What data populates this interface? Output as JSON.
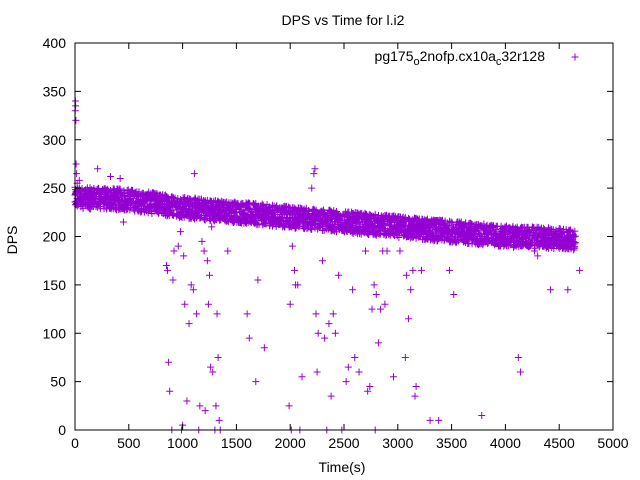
{
  "chart_data": {
    "type": "scatter",
    "title": "DPS vs Time for l.i2",
    "xlabel": "Time(s)",
    "ylabel": "DPS",
    "xlim": [
      0,
      5000
    ],
    "ylim": [
      0,
      400
    ],
    "x_ticks": [
      0,
      500,
      1000,
      1500,
      2000,
      2500,
      3000,
      3500,
      4000,
      4500,
      5000
    ],
    "y_ticks": [
      0,
      50,
      100,
      150,
      200,
      250,
      300,
      350,
      400
    ],
    "x_tick_labels": [
      "0",
      "500",
      "1000",
      "1500",
      "2000",
      "2500",
      "3000",
      "3500",
      "4000",
      "4500",
      "5000"
    ],
    "y_tick_labels": [
      "0",
      "50",
      "100",
      "150",
      "200",
      "250",
      "300",
      "350",
      "400"
    ],
    "grid": false,
    "legend_position": "top-right",
    "marker": "+",
    "color": "#9400d3",
    "series": [
      {
        "name": "pg175_o2nofp.cx10a_c32r128",
        "name_parts": [
          {
            "text": "pg175",
            "sub": false
          },
          {
            "text": "o",
            "sub": true
          },
          {
            "text": "2nofp.cx10a",
            "sub": false
          },
          {
            "text": "c",
            "sub": true
          },
          {
            "text": "32r128",
            "sub": false
          }
        ],
        "trend": [
          [
            0,
            240
          ],
          [
            500,
            238
          ],
          [
            1000,
            230
          ],
          [
            1500,
            225
          ],
          [
            2000,
            220
          ],
          [
            2500,
            215
          ],
          [
            3000,
            210
          ],
          [
            3500,
            205
          ],
          [
            4000,
            200
          ],
          [
            4650,
            197
          ]
        ],
        "points": [
          [
            2,
            330
          ],
          [
            4,
            340
          ],
          [
            6,
            335
          ],
          [
            8,
            320
          ],
          [
            10,
            275
          ],
          [
            15,
            265
          ],
          [
            20,
            255
          ],
          [
            40,
            258
          ],
          [
            210,
            270
          ],
          [
            330,
            262
          ],
          [
            420,
            260
          ],
          [
            450,
            215
          ],
          [
            850,
            170
          ],
          [
            860,
            165
          ],
          [
            870,
            70
          ],
          [
            880,
            40
          ],
          [
            900,
            0
          ],
          [
            910,
            155
          ],
          [
            920,
            185
          ],
          [
            960,
            190
          ],
          [
            980,
            205
          ],
          [
            990,
            0
          ],
          [
            1000,
            5
          ],
          [
            1010,
            180
          ],
          [
            1020,
            130
          ],
          [
            1040,
            30
          ],
          [
            1060,
            110
          ],
          [
            1080,
            150
          ],
          [
            1100,
            145
          ],
          [
            1110,
            265
          ],
          [
            1130,
            120
          ],
          [
            1150,
            0
          ],
          [
            1160,
            25
          ],
          [
            1180,
            195
          ],
          [
            1200,
            185
          ],
          [
            1210,
            20
          ],
          [
            1230,
            175
          ],
          [
            1240,
            130
          ],
          [
            1250,
            160
          ],
          [
            1260,
            65
          ],
          [
            1270,
            210
          ],
          [
            1280,
            60
          ],
          [
            1300,
            0
          ],
          [
            1310,
            25
          ],
          [
            1320,
            120
          ],
          [
            1330,
            75
          ],
          [
            1340,
            10
          ],
          [
            1350,
            0
          ],
          [
            1420,
            185
          ],
          [
            1600,
            120
          ],
          [
            1620,
            95
          ],
          [
            1680,
            50
          ],
          [
            1700,
            155
          ],
          [
            1760,
            85
          ],
          [
            1990,
            25
          ],
          [
            2000,
            130
          ],
          [
            2010,
            0
          ],
          [
            2020,
            190
          ],
          [
            2040,
            165
          ],
          [
            2050,
            150
          ],
          [
            2070,
            150
          ],
          [
            2090,
            0
          ],
          [
            2110,
            55
          ],
          [
            2200,
            250
          ],
          [
            2220,
            265
          ],
          [
            2230,
            270
          ],
          [
            2240,
            120
          ],
          [
            2250,
            60
          ],
          [
            2260,
            100
          ],
          [
            2300,
            175
          ],
          [
            2320,
            95
          ],
          [
            2340,
            0
          ],
          [
            2360,
            110
          ],
          [
            2380,
            35
          ],
          [
            2400,
            120
          ],
          [
            2420,
            100
          ],
          [
            2450,
            160
          ],
          [
            2480,
            0
          ],
          [
            2520,
            50
          ],
          [
            2540,
            65
          ],
          [
            2580,
            145
          ],
          [
            2600,
            75
          ],
          [
            2640,
            60
          ],
          [
            2700,
            185
          ],
          [
            2720,
            40
          ],
          [
            2740,
            45
          ],
          [
            2760,
            125
          ],
          [
            2780,
            150
          ],
          [
            2790,
            0
          ],
          [
            2800,
            140
          ],
          [
            2820,
            90
          ],
          [
            2840,
            125
          ],
          [
            2860,
            185
          ],
          [
            2880,
            130
          ],
          [
            2900,
            185
          ],
          [
            2960,
            55
          ],
          [
            3020,
            185
          ],
          [
            3070,
            75
          ],
          [
            3080,
            160
          ],
          [
            3100,
            115
          ],
          [
            3120,
            145
          ],
          [
            3140,
            165
          ],
          [
            3160,
            35
          ],
          [
            3170,
            45
          ],
          [
            3220,
            165
          ],
          [
            3300,
            10
          ],
          [
            3380,
            10
          ],
          [
            3480,
            165
          ],
          [
            3520,
            140
          ],
          [
            3780,
            15
          ],
          [
            4120,
            75
          ],
          [
            4140,
            60
          ],
          [
            4270,
            185
          ],
          [
            4300,
            180
          ],
          [
            4420,
            145
          ],
          [
            4580,
            145
          ],
          [
            4690,
            165
          ]
        ]
      }
    ]
  }
}
